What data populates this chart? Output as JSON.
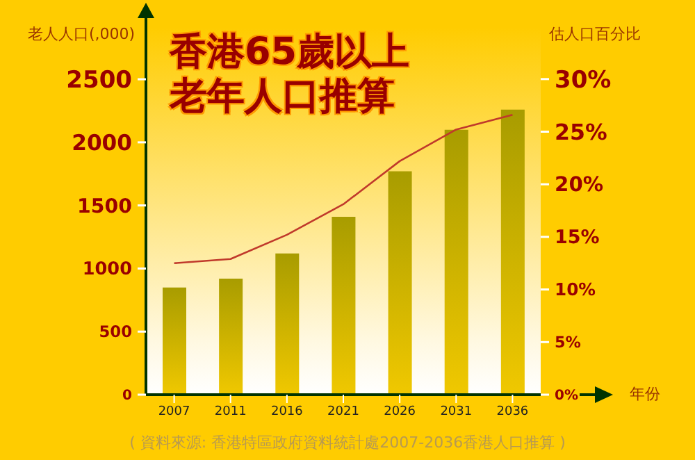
{
  "chart_data": {
    "type": "bar",
    "title": "香港65歲以上老年人口推算",
    "ylabel": "老人人口(,000)",
    "y2label": "估人口百分比",
    "xlabel": "年份",
    "annotations": [
      "( 資料來源: 香港特區政府資料統計處2007-2036香港人口推算 )"
    ],
    "categories": [
      "2007",
      "2011",
      "2016",
      "2021",
      "2026",
      "2031",
      "2036"
    ],
    "series": [
      {
        "color": "#a89c00",
        "values": [
          850,
          920,
          1120,
          1410,
          1770,
          2100,
          2260
        ]
      },
      {
        "type": "line",
        "axis": "y2",
        "color": "#c0392b",
        "values": [
          12.5,
          12.9,
          15.2,
          18.1,
          22.2,
          25.2,
          26.6
        ]
      }
    ],
    "ylim": [
      0,
      2985
    ],
    "yticks": [
      0,
      500,
      1000,
      1500,
      2000,
      2500
    ],
    "y2lim": [
      0,
      35.8
    ],
    "y2ticks": [
      {
        "value": 0,
        "label": "0%"
      },
      {
        "value": 5,
        "label": "5%"
      },
      {
        "value": 10,
        "label": "10%"
      },
      {
        "value": 15,
        "label": "15%"
      },
      {
        "value": 20,
        "label": "20%"
      },
      {
        "value": 25,
        "label": "25%"
      },
      {
        "value": 30,
        "label": "30%"
      }
    ],
    "grid": false,
    "legend": false,
    "marker": "none",
    "line_style": "solid"
  }
}
